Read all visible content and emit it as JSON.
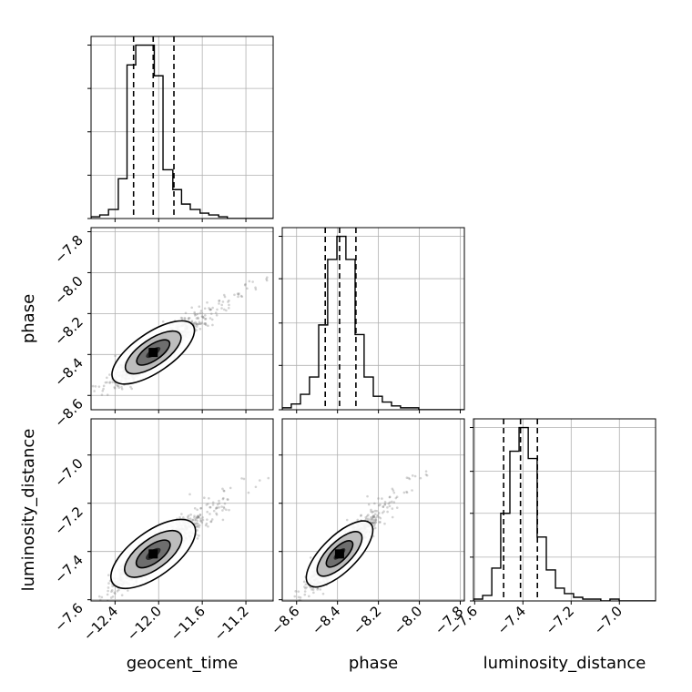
{
  "chart_data": {
    "type": "corner",
    "parameters": [
      "geocent_time",
      "phase",
      "luminosity_distance"
    ],
    "axis_labels": {
      "x": [
        "geocent_time",
        "phase",
        "luminosity_distance"
      ],
      "y": [
        "",
        "phase",
        "luminosity_distance"
      ]
    },
    "grid": true,
    "ranges": {
      "geocent_time": [
        -12.62,
        -10.95
      ],
      "phase": [
        -8.67,
        -7.78
      ],
      "luminosity_distance": [
        -7.605,
        -6.85
      ]
    },
    "ticks": {
      "geocent_time": [
        -12.4,
        -12.0,
        -11.6,
        -11.2
      ],
      "phase": [
        -8.6,
        -8.4,
        -8.2,
        -8.0,
        -7.8
      ],
      "luminosity_distance": [
        -7.6,
        -7.4,
        -7.2,
        -7.0
      ]
    },
    "tick_labels": {
      "geocent_time": [
        "−12.4",
        "−12.0",
        "−11.6",
        "−11.2"
      ],
      "phase": [
        "−8.6",
        "−8.4",
        "−8.2",
        "−8.0",
        "−7.8"
      ],
      "luminosity_distance": [
        "−7.6",
        "−7.4",
        "−7.2",
        "−7.0"
      ]
    },
    "quantiles": {
      "geocent_time": [
        -12.23,
        -12.05,
        -11.86
      ],
      "phase": [
        -8.46,
        -8.39,
        -8.31
      ],
      "luminosity_distance": [
        -7.48,
        -7.41,
        -7.34
      ]
    },
    "histograms": {
      "geocent_time": {
        "edges": [
          -12.62,
          -12.54,
          -12.46,
          -12.37,
          -12.29,
          -12.21,
          -12.12,
          -12.04,
          -11.96,
          -11.87,
          -11.79,
          -11.71,
          -11.62,
          -11.54,
          -11.45,
          -11.37,
          -11.29,
          -11.2,
          -11.12,
          -11.04,
          -10.95
        ],
        "counts": [
          1,
          2,
          5,
          22,
          85,
          96,
          96,
          79,
          27,
          16,
          8,
          5,
          3,
          2,
          1,
          0,
          0,
          0,
          0,
          0
        ]
      },
      "phase": {
        "edges": [
          -8.67,
          -8.626,
          -8.581,
          -8.537,
          -8.492,
          -8.448,
          -8.403,
          -8.359,
          -8.314,
          -8.27,
          -8.225,
          -8.181,
          -8.136,
          -8.092,
          -8.047,
          -8.003,
          -7.958,
          -7.914,
          -7.869,
          -7.825,
          -7.78
        ],
        "counts": [
          1,
          3,
          8,
          17,
          44,
          78,
          90,
          78,
          39,
          17,
          7,
          4,
          2,
          1,
          1,
          0,
          0,
          0,
          0,
          0
        ]
      },
      "luminosity_distance": {
        "edges": [
          -7.605,
          -7.567,
          -7.529,
          -7.492,
          -7.454,
          -7.416,
          -7.378,
          -7.341,
          -7.303,
          -7.265,
          -7.228,
          -7.19,
          -7.152,
          -7.114,
          -7.077,
          -7.039,
          -7.001,
          -6.963,
          -6.926,
          -6.888,
          -6.85
        ],
        "counts": [
          1,
          3,
          18,
          48,
          82,
          95,
          78,
          35,
          17,
          7,
          4,
          2,
          1,
          1,
          0,
          1,
          0,
          0,
          0,
          0
        ]
      }
    },
    "correlation": {
      "phase|geocent_time": 0.9,
      "luminosity_distance|geocent_time": 0.88,
      "luminosity_distance|phase": 0.9
    },
    "colors": {
      "line": "#000000",
      "points": "#808080",
      "grid": "#b0b0b0",
      "frame": "#000000"
    }
  }
}
